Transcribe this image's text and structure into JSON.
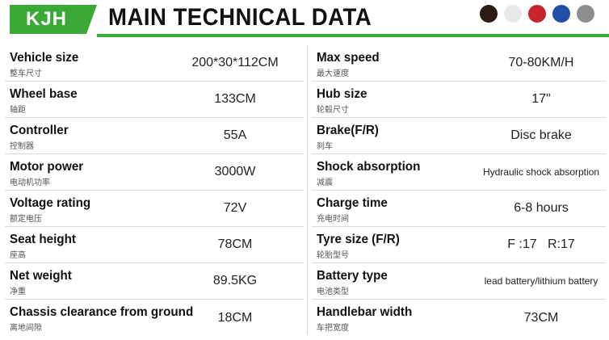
{
  "header": {
    "brand": "KJH",
    "title": "MAIN TECHNICAL DATA",
    "colors": [
      "#2b1a16",
      "#e8e8e8",
      "#c8242b",
      "#1f4fa6",
      "#8e8e8e"
    ]
  },
  "left": [
    {
      "en": "Vehicle size",
      "cn": "整车尺寸",
      "value": "200*30*112CM"
    },
    {
      "en": "Wheel base",
      "cn": "轴距",
      "value": "133CM"
    },
    {
      "en": "Controller",
      "cn": "控制器",
      "value": "55A"
    },
    {
      "en": "Motor power",
      "cn": "电动机功率",
      "value": "3000W"
    },
    {
      "en": "Voltage rating",
      "cn": "额定电压",
      "value": "72V"
    },
    {
      "en": "Seat height",
      "cn": "座高",
      "value": "78CM"
    },
    {
      "en": "Net weight",
      "cn": "净重",
      "value": "89.5KG"
    },
    {
      "en": "Chassis clearance from ground",
      "cn": "离地间隙",
      "value": "18CM"
    }
  ],
  "right": [
    {
      "en": "Max speed",
      "cn": "最大速度",
      "value": "70-80KM/H"
    },
    {
      "en": "Hub size",
      "cn": "轮毂尺寸",
      "value": "17\""
    },
    {
      "en": "Brake(F/R)",
      "cn": "刹车",
      "value": "Disc brake"
    },
    {
      "en": "Shock absorption",
      "cn": "减震",
      "value": "Hydraulic shock absorption"
    },
    {
      "en": "Charge time",
      "cn": "充电时间",
      "value": "6-8 hours"
    },
    {
      "en": "Tyre size (F/R)",
      "cn": "轮胎型号",
      "value": "F :17   R:17"
    },
    {
      "en": "Battery type",
      "cn": "电池类型",
      "value": "lead battery/lithium battery"
    },
    {
      "en": "Handlebar width",
      "cn": "车把宽度",
      "value": "73CM"
    }
  ]
}
